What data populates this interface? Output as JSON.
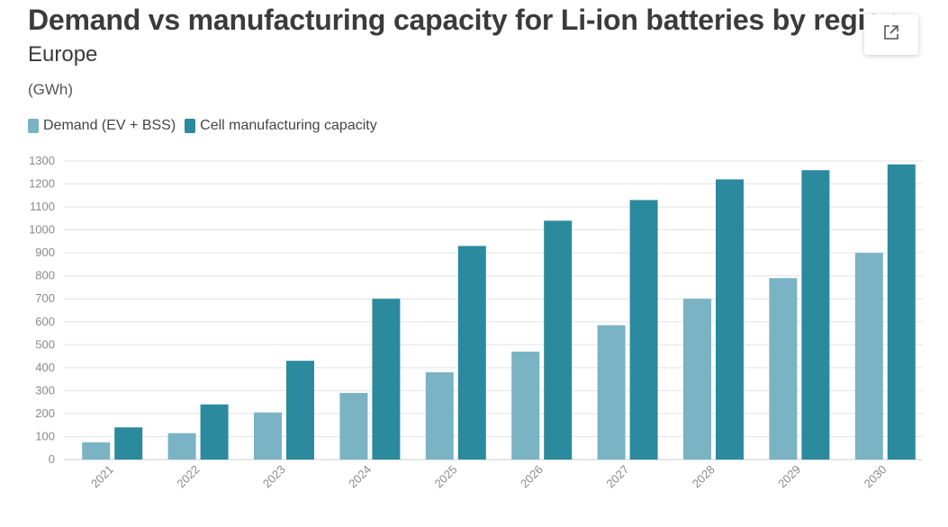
{
  "header": {
    "title": "Demand vs manufacturing capacity for Li-ion batteries by region",
    "subtitle": "Europe",
    "unit": "(GWh)"
  },
  "share_button": {
    "icon": "external-link-icon"
  },
  "colors": {
    "demand": "#7ab3c4",
    "capacity": "#2b8a9e",
    "grid": "#e3e3e3"
  },
  "chart_data": {
    "type": "bar",
    "title": "Demand vs manufacturing capacity for Li-ion batteries by region",
    "subtitle": "Europe",
    "ylabel": "(GWh)",
    "xlabel": "",
    "categories": [
      "2021",
      "2022",
      "2023",
      "2024",
      "2025",
      "2026",
      "2027",
      "2028",
      "2029",
      "2030"
    ],
    "series": [
      {
        "name": "Demand (EV + BSS)",
        "values": [
          75,
          115,
          205,
          290,
          380,
          470,
          585,
          700,
          790,
          900
        ]
      },
      {
        "name": "Cell manufacturing capacity",
        "values": [
          140,
          240,
          430,
          700,
          930,
          1040,
          1130,
          1220,
          1260,
          1285
        ]
      }
    ],
    "ylim": [
      0,
      1300
    ],
    "yticks": [
      0,
      100,
      200,
      300,
      400,
      500,
      600,
      700,
      800,
      900,
      1000,
      1100,
      1200,
      1300
    ],
    "grid": true,
    "legend": "top-left"
  }
}
